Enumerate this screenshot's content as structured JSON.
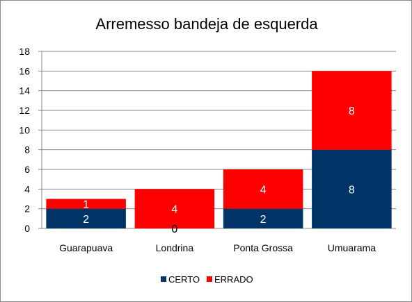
{
  "chart_data": {
    "type": "bar",
    "stacked": true,
    "title": "Arremesso bandeja de esquerda",
    "xlabel": "",
    "ylabel": "",
    "categories": [
      "Guarapuava",
      "Londrina",
      "Ponta Grossa",
      "Umuarama"
    ],
    "series": [
      {
        "name": "CERTO",
        "values": [
          2,
          0,
          2,
          8
        ],
        "color": "#003366",
        "label_color": "#ffffff"
      },
      {
        "name": "ERRADO",
        "values": [
          1,
          4,
          4,
          8
        ],
        "color": "#ff0000",
        "label_color": "#ffffff"
      }
    ],
    "ylim": [
      0,
      18
    ],
    "yticks": [
      0,
      2,
      4,
      6,
      8,
      10,
      12,
      14,
      16,
      18
    ],
    "grid": true,
    "legend": "bottom",
    "zero_label_color": "#000000"
  }
}
